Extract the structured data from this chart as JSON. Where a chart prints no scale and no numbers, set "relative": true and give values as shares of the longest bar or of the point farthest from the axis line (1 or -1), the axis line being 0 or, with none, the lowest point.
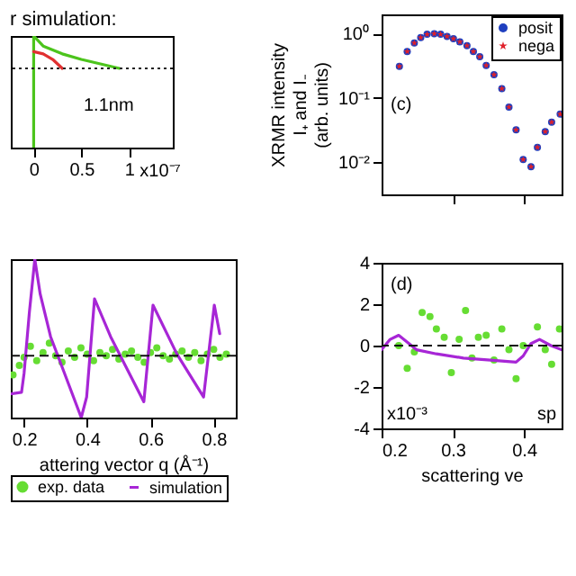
{
  "chart_data": [
    {
      "type": "line",
      "title": "r simulation:",
      "relative": true,
      "xlim": [
        -0.24,
        1.46
      ],
      "xticks": [
        0,
        0.5,
        1
      ],
      "tick_labels": "x",
      "series": [
        {
          "color": "#4cc41c",
          "x": [
            0,
            0,
            0.1,
            0.3,
            0.5,
            0.7,
            0.9
          ],
          "values": [
            0,
            1,
            0.91,
            0.84,
            0.79,
            0.75,
            0.71
          ]
        },
        {
          "color": "#e03030",
          "x": [
            0,
            0.1,
            0.2,
            0.3
          ],
          "values": [
            0.86,
            0.84,
            0.79,
            0.71
          ]
        }
      ],
      "ref_lines": [
        {
          "axis": "y",
          "value": 0.71,
          "line_style": "dotted",
          "color": "#222222"
        }
      ],
      "annotations": [
        "x10⁻⁷",
        "1.1nm"
      ]
    },
    {
      "type": "scatter",
      "ylabel": "XRMR intensity\nI₊ and I₋\n(arb. units)",
      "log": "y",
      "xlim": [
        0.2,
        0.453
      ],
      "xticks": [
        0.3,
        0.4
      ],
      "ylim": [
        0.00316,
        2
      ],
      "yticks": [
        {
          "value": 1,
          "label": "10⁰"
        },
        {
          "value": 0.1,
          "label": "10⁻¹"
        },
        {
          "value": 0.01,
          "label": "10⁻²"
        }
      ],
      "tick_labels": "y",
      "legend": "top right",
      "x": [
        0.225,
        0.236,
        0.246,
        0.255,
        0.264,
        0.274,
        0.283,
        0.292,
        0.301,
        0.31,
        0.32,
        0.329,
        0.338,
        0.347,
        0.358,
        0.369,
        0.379,
        0.389,
        0.399,
        0.41,
        0.419,
        0.43,
        0.439,
        0.451
      ],
      "series": [
        {
          "name": "posit",
          "color": "#1f3fbf",
          "marker": "circle",
          "values": [
            0.31,
            0.53,
            0.72,
            0.87,
            0.98,
            1.0,
            0.98,
            0.91,
            0.84,
            0.75,
            0.65,
            0.53,
            0.44,
            0.32,
            0.23,
            0.14,
            0.072,
            0.032,
            0.011,
            0.0085,
            0.017,
            0.03,
            0.042,
            0.056
          ]
        },
        {
          "name": "nega",
          "color": "#e0202a",
          "marker": "star",
          "values": [
            0.31,
            0.53,
            0.72,
            0.87,
            0.98,
            1.0,
            0.98,
            0.91,
            0.84,
            0.75,
            0.65,
            0.53,
            0.44,
            0.32,
            0.23,
            0.14,
            0.072,
            0.032,
            0.011,
            0.0085,
            0.017,
            0.03,
            0.042,
            0.056
          ]
        }
      ],
      "annotations": [
        "(c)"
      ]
    },
    {
      "type": "line",
      "xlabel": "attering vector q (Å⁻¹)",
      "relative": true,
      "xlim": [
        0.158,
        0.87
      ],
      "xticks": [
        0.2,
        0.4,
        0.6,
        0.8
      ],
      "tick_labels": "x",
      "legend": "bottom",
      "series": [
        {
          "name": "exp. data",
          "type": "scatter",
          "color": "#66dd33",
          "marker": "circle",
          "x": [
            0.165,
            0.185,
            0.2,
            0.22,
            0.24,
            0.26,
            0.28,
            0.3,
            0.32,
            0.34,
            0.36,
            0.38,
            0.4,
            0.42,
            0.44,
            0.46,
            0.48,
            0.5,
            0.52,
            0.54,
            0.56,
            0.58,
            0.6,
            0.62,
            0.64,
            0.66,
            0.68,
            0.7,
            0.72,
            0.74,
            0.76,
            0.78,
            0.8,
            0.82,
            0.84
          ],
          "values": [
            0.27,
            0.33,
            0.38,
            0.45,
            0.36,
            0.41,
            0.47,
            0.39,
            0.35,
            0.42,
            0.38,
            0.44,
            0.4,
            0.36,
            0.41,
            0.39,
            0.43,
            0.37,
            0.4,
            0.42,
            0.38,
            0.35,
            0.41,
            0.44,
            0.39,
            0.37,
            0.4,
            0.42,
            0.38,
            0.41,
            0.36,
            0.4,
            0.43,
            0.38,
            0.4
          ]
        },
        {
          "name": "simulation",
          "color": "#a726d6",
          "x": [
            0.158,
            0.192,
            0.2,
            0.217,
            0.234,
            0.251,
            0.284,
            0.326,
            0.381,
            0.398,
            0.423,
            0.474,
            0.579,
            0.608,
            0.684,
            0.768,
            0.802,
            0.819
          ],
          "values": [
            0.15,
            0.16,
            0.28,
            0.67,
            1,
            0.78,
            0.51,
            0.29,
            0,
            0.13,
            0.75,
            0.51,
            0.1,
            0.71,
            0.4,
            0.13,
            0.71,
            0.53
          ]
        }
      ],
      "ref_lines": [
        {
          "axis": "y",
          "value": 0.39,
          "line_style": "dashed",
          "color": "#111111"
        }
      ]
    },
    {
      "type": "line",
      "xlabel": "scattering ve",
      "xlim": [
        0.2,
        0.453
      ],
      "xticks": [
        0.2,
        0.3,
        0.4
      ],
      "ylim": [
        -4,
        4
      ],
      "yticks": [
        -4,
        -2,
        0,
        2,
        4
      ],
      "series": [
        {
          "type": "scatter",
          "color": "#66dd33",
          "marker": "circle",
          "x": [
            0.224,
            0.236,
            0.246,
            0.257,
            0.268,
            0.277,
            0.288,
            0.298,
            0.309,
            0.318,
            0.327,
            0.336,
            0.347,
            0.358,
            0.369,
            0.379,
            0.389,
            0.399,
            0.419,
            0.43,
            0.439,
            0.45
          ],
          "values": [
            0,
            -1.1,
            -0.3,
            1.6,
            1.4,
            0.8,
            0.4,
            -1.3,
            0.3,
            1.7,
            -0.6,
            0.4,
            0.5,
            -0.7,
            0.8,
            -0.2,
            -1.6,
            0,
            0.9,
            -0.2,
            -0.9,
            0.8
          ]
        },
        {
          "color": "#a726d6",
          "x": [
            0.2,
            0.212,
            0.224,
            0.235,
            0.249,
            0.277,
            0.315,
            0.353,
            0.389,
            0.399,
            0.41,
            0.422,
            0.438,
            0.453
          ],
          "values": [
            -0.2,
            0.3,
            0.5,
            0.2,
            -0.2,
            -0.4,
            -0.6,
            -0.7,
            -0.8,
            -0.5,
            0.1,
            0.3,
            0,
            -0.2
          ]
        }
      ],
      "ref_lines": [
        {
          "axis": "y",
          "value": 0,
          "line_style": "dashed",
          "color": "#111111"
        }
      ],
      "annotations": [
        "(d)",
        "sp",
        "x10⁻³"
      ]
    }
  ]
}
